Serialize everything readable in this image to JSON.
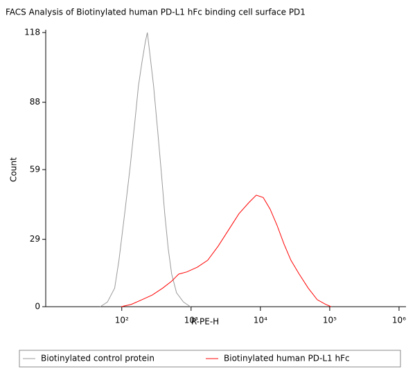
{
  "chart_data": {
    "type": "line",
    "title": "FACS Analysis of Biotinylated human PD-L1 hFc binding cell surface PD1",
    "xlabel": "R-PE-H",
    "ylabel": "Count",
    "xscale": "log",
    "xlim": [
      8,
      1260000
    ],
    "ylim": [
      0,
      118
    ],
    "xticks": [
      {
        "value": 100,
        "label": "10²"
      },
      {
        "value": 1000,
        "label": "10³"
      },
      {
        "value": 10000,
        "label": "10⁴"
      },
      {
        "value": 100000,
        "label": "10⁵"
      },
      {
        "value": 1000000,
        "label": "10⁶"
      }
    ],
    "yticks": [
      0,
      29,
      59,
      88,
      118
    ],
    "legend": "bottom",
    "series": [
      {
        "name": "Biotinylated control protein",
        "color": "#999999",
        "x": [
          49,
          62,
          79,
          91,
          110,
          132,
          155,
          174,
          195,
          219,
          234,
          263,
          288,
          331,
          372,
          417,
          468,
          525,
          617,
          776,
          977
        ],
        "values": [
          0,
          2,
          8,
          20,
          40,
          60,
          80,
          95,
          105,
          114,
          118,
          105,
          95,
          75,
          58,
          40,
          25,
          14,
          6,
          2,
          0
        ]
      },
      {
        "name": "Biotinylated human PD-L1 hFc",
        "color": "#ff0000",
        "x": [
          98,
          138,
          195,
          275,
          389,
          525,
          661,
          871,
          1230,
          1738,
          2455,
          3467,
          4898,
          6918,
          8710,
          10965,
          13804,
          17378,
          21878,
          27542,
          36308,
          48978,
          66069,
          87096,
          104713
        ],
        "values": [
          0,
          1,
          3,
          5,
          8,
          11,
          14,
          15,
          17,
          20,
          26,
          33,
          40,
          45,
          48,
          47,
          42,
          35,
          27,
          20,
          14,
          8,
          3,
          1,
          0
        ]
      }
    ]
  }
}
